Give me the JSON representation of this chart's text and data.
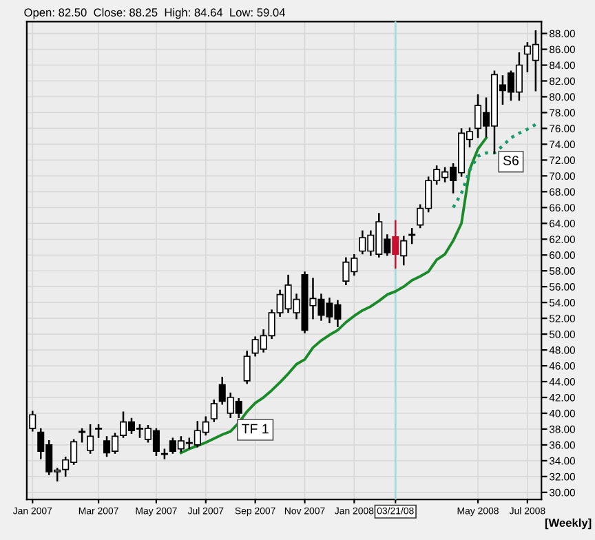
{
  "chart_data": {
    "type": "candlestick",
    "annotations": [
      "Open: 82.50  Close: 88.25  High: 84.64  Low: 59.04",
      "[Weekly]"
    ],
    "categories": [
      "Jan 2007",
      null,
      null,
      null,
      null,
      null,
      null,
      null,
      "Mar 2007",
      null,
      null,
      null,
      null,
      null,
      null,
      "May 2007",
      null,
      null,
      null,
      null,
      null,
      "Jul 2007",
      null,
      null,
      null,
      null,
      null,
      "Sep 2007",
      null,
      null,
      null,
      null,
      null,
      "Nov 2007",
      null,
      null,
      null,
      null,
      null,
      "Jan 2008",
      null,
      null,
      null,
      null,
      "03/21/08",
      null,
      null,
      null,
      null,
      null,
      null,
      null,
      null,
      null,
      "May 2008",
      null,
      null,
      null,
      null,
      null,
      "Jul 2008",
      null
    ],
    "ohlc": [
      [
        38.1,
        40.2,
        37.8,
        39.8
      ],
      [
        37.6,
        38.0,
        34.3,
        35.2
      ],
      [
        36.0,
        36.5,
        32.3,
        32.6
      ],
      [
        32.8,
        33.0,
        31.5,
        32.6
      ],
      [
        32.9,
        34.4,
        32.1,
        34.1
      ],
      [
        33.8,
        36.6,
        33.6,
        36.4
      ],
      [
        37.6,
        38.0,
        36.4,
        37.7
      ],
      [
        35.3,
        38.5,
        35.0,
        37.1
      ],
      [
        38.1,
        38.5,
        37.0,
        38.0
      ],
      [
        36.5,
        37.0,
        34.6,
        35.0
      ],
      [
        35.2,
        37.4,
        35.0,
        37.1
      ],
      [
        37.2,
        40.1,
        37.0,
        38.9
      ],
      [
        38.9,
        39.3,
        37.5,
        37.8
      ],
      [
        38.0,
        38.5,
        37.0,
        38.1
      ],
      [
        36.7,
        38.4,
        36.4,
        38.1
      ],
      [
        37.8,
        38.0,
        34.7,
        35.2
      ],
      [
        34.9,
        35.4,
        34.3,
        34.8
      ],
      [
        36.5,
        36.8,
        35.0,
        35.2
      ],
      [
        35.5,
        37.0,
        35.2,
        36.5
      ],
      [
        36.2,
        36.8,
        35.6,
        36.3
      ],
      [
        36.0,
        38.9,
        35.8,
        37.8
      ],
      [
        37.6,
        39.5,
        37.3,
        38.9
      ],
      [
        39.3,
        41.6,
        39.0,
        41.2
      ],
      [
        43.6,
        44.5,
        41.2,
        41.5
      ],
      [
        40.0,
        42.5,
        39.5,
        42.0
      ],
      [
        41.5,
        41.8,
        39.5,
        40.0
      ],
      [
        44.1,
        47.8,
        43.8,
        47.2
      ],
      [
        47.6,
        49.6,
        47.3,
        49.3
      ],
      [
        48.1,
        50.5,
        47.8,
        49.8
      ],
      [
        49.8,
        53.0,
        49.5,
        52.7
      ],
      [
        52.7,
        55.5,
        52.3,
        55.0
      ],
      [
        53.2,
        57.4,
        52.8,
        56.2
      ],
      [
        52.7,
        55.0,
        52.0,
        54.4
      ],
      [
        57.5,
        57.8,
        50.2,
        50.5
      ],
      [
        53.6,
        57.0,
        52.0,
        54.5
      ],
      [
        54.4,
        55.0,
        51.8,
        52.4
      ],
      [
        53.9,
        54.5,
        51.5,
        52.2
      ],
      [
        53.7,
        54.2,
        51.0,
        51.9
      ],
      [
        56.7,
        59.6,
        56.3,
        59.1
      ],
      [
        57.9,
        60.0,
        57.5,
        59.6
      ],
      [
        60.5,
        63.0,
        60.2,
        62.2
      ],
      [
        60.5,
        63.0,
        60.0,
        62.5
      ],
      [
        60.1,
        65.2,
        59.8,
        64.2
      ],
      [
        62.0,
        62.5,
        60.0,
        60.3
      ],
      [
        62.3,
        64.3,
        58.4,
        60.1
      ],
      [
        59.9,
        62.3,
        58.8,
        61.8
      ],
      [
        62.5,
        63.3,
        61.5,
        62.6
      ],
      [
        63.8,
        66.3,
        63.5,
        65.9
      ],
      [
        65.9,
        69.8,
        65.5,
        69.4
      ],
      [
        69.4,
        71.2,
        69.0,
        70.8
      ],
      [
        69.8,
        71.0,
        69.3,
        70.5
      ],
      [
        71.1,
        71.5,
        67.9,
        69.4
      ],
      [
        70.4,
        75.9,
        70.0,
        75.4
      ],
      [
        74.6,
        76.0,
        73.7,
        75.6
      ],
      [
        76.0,
        80.2,
        74.9,
        78.9
      ],
      [
        78.0,
        79.8,
        75.0,
        76.3
      ],
      [
        76.3,
        83.2,
        72.9,
        82.8
      ],
      [
        81.5,
        82.6,
        79.1,
        80.8
      ],
      [
        83.0,
        83.2,
        79.6,
        80.6
      ],
      [
        80.6,
        85.5,
        79.6,
        84.0
      ],
      [
        85.4,
        86.8,
        83.2,
        86.4
      ],
      [
        84.6,
        88.3,
        80.8,
        86.6
      ]
    ],
    "colors": [
      "#ffffff",
      "#000000",
      "#000000",
      "#ffffff",
      "#ffffff",
      "#ffffff",
      "#ffffff",
      "#ffffff",
      "#000000",
      "#000000",
      "#ffffff",
      "#ffffff",
      "#000000",
      "#ffffff",
      "#ffffff",
      "#000000",
      "#000000",
      "#000000",
      "#ffffff",
      "#ffffff",
      "#ffffff",
      "#ffffff",
      "#ffffff",
      "#000000",
      "#ffffff",
      "#000000",
      "#ffffff",
      "#ffffff",
      "#ffffff",
      "#ffffff",
      "#ffffff",
      "#ffffff",
      "#ffffff",
      "#000000",
      "#ffffff",
      "#000000",
      "#000000",
      "#000000",
      "#ffffff",
      "#ffffff",
      "#ffffff",
      "#ffffff",
      "#ffffff",
      "#000000",
      "#c8102e",
      "#ffffff",
      "#ffffff",
      "#ffffff",
      "#ffffff",
      "#ffffff",
      "#ffffff",
      "#000000",
      "#ffffff",
      "#ffffff",
      "#ffffff",
      "#000000",
      "#ffffff",
      "#000000",
      "#000000",
      "#ffffff",
      "#ffffff",
      "#ffffff"
    ],
    "series": [
      {
        "name": "TF 1",
        "type": "line",
        "color": "#1a8a2a",
        "line_style": "solid",
        "values": [
          null,
          null,
          null,
          null,
          null,
          null,
          null,
          null,
          null,
          null,
          null,
          null,
          null,
          null,
          null,
          null,
          null,
          null,
          35.0,
          35.5,
          35.9,
          36.3,
          36.8,
          37.3,
          37.7,
          38.8,
          40.2,
          41.3,
          42.0,
          42.9,
          43.9,
          45.0,
          46.2,
          46.8,
          48.3,
          49.2,
          49.9,
          50.5,
          51.5,
          52.3,
          53.0,
          53.5,
          54.2,
          55.0,
          55.4,
          56.0,
          56.8,
          57.3,
          57.9,
          59.4,
          60.1,
          61.8,
          64.0,
          70.8,
          73.4,
          74.8,
          null,
          null,
          null,
          null,
          null,
          null
        ]
      },
      {
        "name": "S6",
        "type": "line",
        "color": "#1a9a6a",
        "line_style": "dotted",
        "values": [
          null,
          null,
          null,
          null,
          null,
          null,
          null,
          null,
          null,
          null,
          null,
          null,
          null,
          null,
          null,
          null,
          null,
          null,
          null,
          null,
          null,
          null,
          null,
          null,
          null,
          null,
          null,
          null,
          null,
          null,
          null,
          null,
          null,
          null,
          null,
          null,
          null,
          null,
          null,
          null,
          null,
          null,
          null,
          null,
          null,
          null,
          null,
          null,
          null,
          null,
          null,
          66.0,
          67.8,
          70.7,
          72.5,
          72.9,
          72.9,
          73.8,
          74.8,
          75.4,
          75.9,
          76.5
        ]
      }
    ],
    "ref_lines": [
      {
        "axis": "x",
        "value": "03/21/08",
        "color": "#a8d8e0"
      }
    ],
    "ylim": [
      29.1,
      89.5
    ],
    "yticks": [
      {
        "value": 30,
        "label": "30.00"
      },
      {
        "value": 32,
        "label": "32.00"
      },
      {
        "value": 34,
        "label": "34.00"
      },
      {
        "value": 36,
        "label": "36.00"
      },
      {
        "value": 38,
        "label": "38.00"
      },
      {
        "value": 40,
        "label": "40.00"
      },
      {
        "value": 42,
        "label": "42.00"
      },
      {
        "value": 44,
        "label": "44.00"
      },
      {
        "value": 46,
        "label": "46.00"
      },
      {
        "value": 48,
        "label": "48.00"
      },
      {
        "value": 50,
        "label": "50.00"
      },
      {
        "value": 52,
        "label": "52.00"
      },
      {
        "value": 54,
        "label": "54.00"
      },
      {
        "value": 56,
        "label": "56.00"
      },
      {
        "value": 58,
        "label": "58.00"
      },
      {
        "value": 60,
        "label": "60.00"
      },
      {
        "value": 62,
        "label": "62.00"
      },
      {
        "value": 64,
        "label": "64.00"
      },
      {
        "value": 66,
        "label": "66.00"
      },
      {
        "value": 68,
        "label": "68.00"
      },
      {
        "value": 70,
        "label": "70.00"
      },
      {
        "value": 72,
        "label": "72.00"
      },
      {
        "value": 74,
        "label": "74.00"
      },
      {
        "value": 76,
        "label": "76.00"
      },
      {
        "value": 78,
        "label": "78.00"
      },
      {
        "value": 80,
        "label": "80.00"
      },
      {
        "value": 82,
        "label": "82.00"
      },
      {
        "value": 84,
        "label": "84.00"
      },
      {
        "value": 86,
        "label": "86.00"
      },
      {
        "value": 88,
        "label": "88.00"
      }
    ],
    "grid": true
  }
}
